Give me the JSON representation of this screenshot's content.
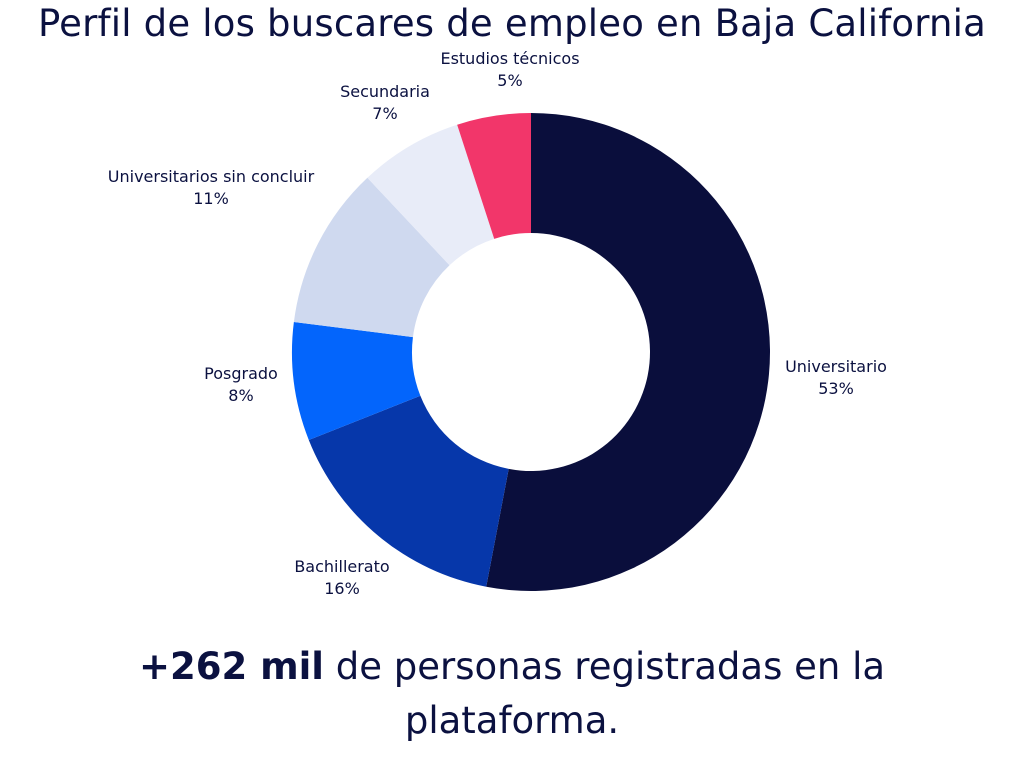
{
  "title": "Perfil de los buscares de empleo en Baja California",
  "chart_data": {
    "type": "pie",
    "style": "donut",
    "start": "top, clockwise",
    "slices": [
      {
        "label": "Universitario",
        "value": 53,
        "value_label": "53%",
        "color": "#0a0e3c"
      },
      {
        "label": "Bachillerato",
        "value": 16,
        "value_label": "16%",
        "color": "#0637aa"
      },
      {
        "label": "Posgrado",
        "value": 8,
        "value_label": "8%",
        "color": "#0365fc"
      },
      {
        "label": "Universitarios sin concluir",
        "value": 11,
        "value_label": "11%",
        "color": "#cfd9ef"
      },
      {
        "label": "Secundaria",
        "value": 7,
        "value_label": "7%",
        "color": "#e8ecf8"
      },
      {
        "label": "Estudios técnicos",
        "value": 5,
        "value_label": "5%",
        "color": "#f2366a"
      }
    ]
  },
  "footer": {
    "highlight": "+262 mil",
    "text": " de personas registradas en la plataforma."
  }
}
